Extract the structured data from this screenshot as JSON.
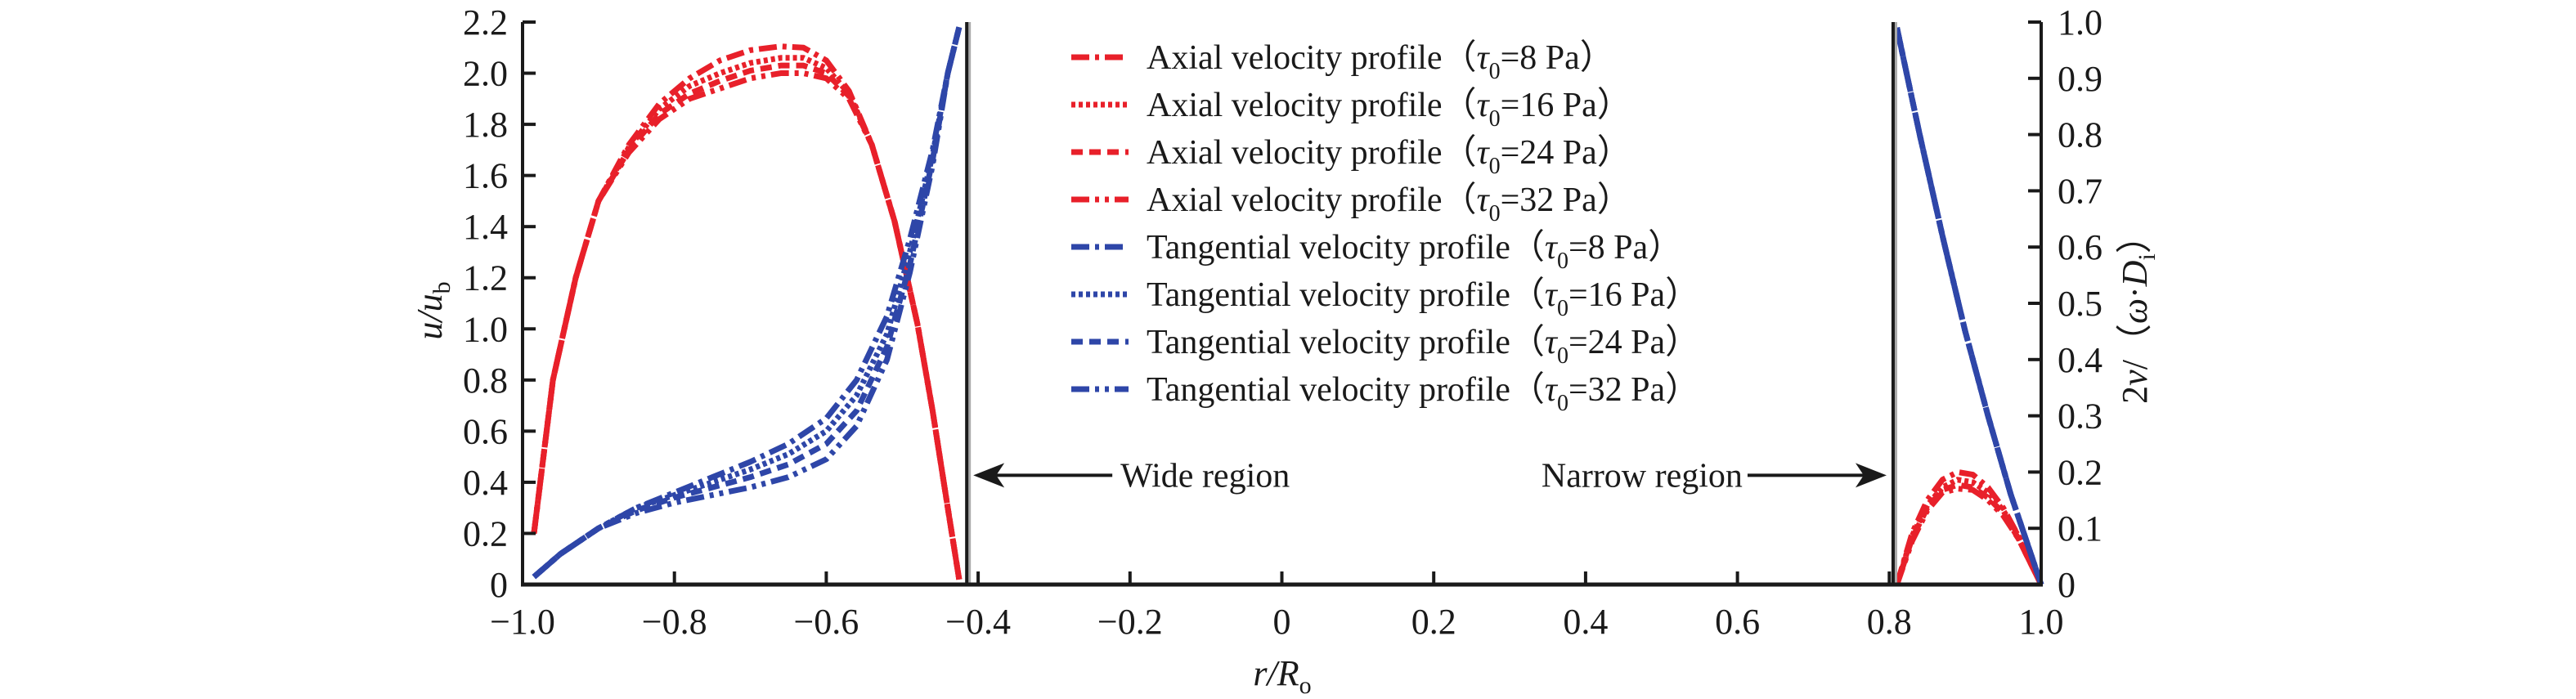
{
  "chart_data": {
    "type": "line",
    "title": "",
    "xlabel": "r/R_o",
    "xlabel_parts": {
      "main_italic": "r/R",
      "sub": "o"
    },
    "ylabel_left": "u/u_b",
    "ylabel_left_parts": {
      "main_italic": "u/u",
      "sub": "b"
    },
    "ylabel_right": "2v/(ω·D_i)",
    "ylabel_right_parts": {
      "pre": "2",
      "v_italic": "v",
      "mid": "/（",
      "omega_italic": "ω",
      "dot": "·",
      "D_italic": "D",
      "sub": "i",
      "post": "）"
    },
    "xlim": [
      -1.0,
      1.0
    ],
    "ylim_left": [
      0,
      2.2
    ],
    "ylim_right": [
      0,
      1.0
    ],
    "grid": false,
    "legend_placement": "top-center",
    "x_ticks": [
      "−1.0",
      "−0.8",
      "−0.6",
      "−0.4",
      "−0.2",
      "0",
      "0.2",
      "0.4",
      "0.6",
      "0.8",
      "1.0"
    ],
    "x_tick_values": [
      -1.0,
      -0.8,
      -0.6,
      -0.4,
      -0.2,
      0,
      0.2,
      0.4,
      0.6,
      0.8,
      1.0
    ],
    "y_left_ticks": [
      "0",
      "0.2",
      "0.4",
      "0.6",
      "0.8",
      "1.0",
      "1.2",
      "1.4",
      "1.6",
      "1.8",
      "2.0",
      "2.2"
    ],
    "y_left_tick_values": [
      0,
      0.2,
      0.4,
      0.6,
      0.8,
      1.0,
      1.2,
      1.4,
      1.6,
      1.8,
      2.0,
      2.2
    ],
    "y_right_ticks": [
      "0",
      "0.1",
      "0.2",
      "0.3",
      "0.4",
      "0.5",
      "0.6",
      "0.7",
      "0.8",
      "0.9",
      "1.0"
    ],
    "y_right_tick_values": [
      0,
      0.1,
      0.2,
      0.3,
      0.4,
      0.5,
      0.6,
      0.7,
      0.8,
      0.9,
      1.0
    ],
    "boundaries": [
      {
        "name": "wide-region-wall",
        "x": -0.415
      },
      {
        "name": "narrow-region-wall",
        "x": 0.805
      }
    ],
    "annotations": [
      {
        "name": "wide-region",
        "text": "Wide region",
        "arrow_to": "left",
        "y": 0.44
      },
      {
        "name": "narrow-region",
        "text": "Narrow region",
        "arrow_to": "right",
        "y": 0.44
      }
    ],
    "colors": {
      "axial": "#e8202a",
      "tangential": "#2e46a8",
      "axis": "#1a1a1a"
    },
    "series": [
      {
        "name": "Axial velocity profile（τ0=8 Pa）",
        "legend_main": "Axial velocity profile（",
        "legend_tau": "τ",
        "legend_sub": "0",
        "legend_tail": "=8 Pa）",
        "axis": "left",
        "color": "axial",
        "dash": "dashdot",
        "wide": {
          "x": [
            -0.985,
            -0.96,
            -0.93,
            -0.9,
            -0.86,
            -0.82,
            -0.78,
            -0.74,
            -0.7,
            -0.66,
            -0.63,
            -0.6,
            -0.57,
            -0.54,
            -0.51,
            -0.48,
            -0.46,
            -0.44,
            -0.425
          ],
          "y": [
            0.2,
            0.8,
            1.2,
            1.5,
            1.72,
            1.88,
            1.98,
            2.05,
            2.09,
            2.105,
            2.1,
            2.05,
            1.93,
            1.72,
            1.42,
            1.02,
            0.68,
            0.3,
            0.02
          ]
        },
        "narrow": {
          "x": [
            0.81,
            0.83,
            0.85,
            0.87,
            0.89,
            0.91,
            0.93,
            0.95,
            0.97,
            0.99,
            1.0
          ],
          "y": [
            0.0,
            0.2,
            0.33,
            0.41,
            0.44,
            0.43,
            0.38,
            0.3,
            0.19,
            0.06,
            0.0
          ]
        }
      },
      {
        "name": "Axial velocity profile（τ0=16 Pa）",
        "legend_main": "Axial velocity profile（",
        "legend_tau": "τ",
        "legend_sub": "0",
        "legend_tail": "=16 Pa）",
        "axis": "left",
        "color": "axial",
        "dash": "dotted",
        "wide": {
          "x": [
            -0.985,
            -0.96,
            -0.93,
            -0.9,
            -0.86,
            -0.82,
            -0.78,
            -0.74,
            -0.7,
            -0.66,
            -0.63,
            -0.6,
            -0.57,
            -0.54,
            -0.51,
            -0.48,
            -0.46,
            -0.44,
            -0.425
          ],
          "y": [
            0.2,
            0.8,
            1.2,
            1.5,
            1.71,
            1.86,
            1.95,
            2.0,
            2.04,
            2.06,
            2.06,
            2.02,
            1.92,
            1.72,
            1.42,
            1.02,
            0.68,
            0.3,
            0.02
          ]
        },
        "narrow": {
          "x": [
            0.81,
            0.83,
            0.85,
            0.87,
            0.89,
            0.91,
            0.93,
            0.95,
            0.97,
            0.99,
            1.0
          ],
          "y": [
            0.0,
            0.19,
            0.31,
            0.38,
            0.41,
            0.4,
            0.36,
            0.29,
            0.19,
            0.06,
            0.0
          ]
        }
      },
      {
        "name": "Axial velocity profile（τ0=24 Pa）",
        "legend_main": "Axial velocity profile（",
        "legend_tau": "τ",
        "legend_sub": "0",
        "legend_tail": "=24 Pa）",
        "axis": "left",
        "color": "axial",
        "dash": "dashed",
        "wide": {
          "x": [
            -0.985,
            -0.96,
            -0.93,
            -0.9,
            -0.86,
            -0.82,
            -0.78,
            -0.74,
            -0.7,
            -0.66,
            -0.63,
            -0.6,
            -0.57,
            -0.54,
            -0.51,
            -0.48,
            -0.46,
            -0.44,
            -0.425
          ],
          "y": [
            0.2,
            0.8,
            1.2,
            1.5,
            1.7,
            1.84,
            1.92,
            1.97,
            2.01,
            2.03,
            2.03,
            2.0,
            1.91,
            1.72,
            1.42,
            1.02,
            0.68,
            0.3,
            0.02
          ]
        },
        "narrow": {
          "x": [
            0.81,
            0.83,
            0.85,
            0.87,
            0.89,
            0.91,
            0.93,
            0.95,
            0.97,
            0.99,
            1.0
          ],
          "y": [
            0.0,
            0.18,
            0.3,
            0.37,
            0.39,
            0.38,
            0.34,
            0.28,
            0.18,
            0.06,
            0.0
          ]
        }
      },
      {
        "name": "Axial velocity profile（τ0=32 Pa）",
        "legend_main": "Axial velocity profile（",
        "legend_tau": "τ",
        "legend_sub": "0",
        "legend_tail": "=32 Pa）",
        "axis": "left",
        "color": "axial",
        "dash": "dashdotdot",
        "wide": {
          "x": [
            -0.985,
            -0.96,
            -0.93,
            -0.9,
            -0.86,
            -0.82,
            -0.78,
            -0.74,
            -0.7,
            -0.66,
            -0.63,
            -0.6,
            -0.57,
            -0.54,
            -0.51,
            -0.48,
            -0.46,
            -0.44,
            -0.425
          ],
          "y": [
            0.2,
            0.8,
            1.2,
            1.5,
            1.69,
            1.82,
            1.9,
            1.94,
            1.98,
            2.0,
            2.0,
            1.98,
            1.9,
            1.72,
            1.42,
            1.02,
            0.68,
            0.3,
            0.02
          ]
        },
        "narrow": {
          "x": [
            0.81,
            0.83,
            0.85,
            0.87,
            0.89,
            0.91,
            0.93,
            0.95,
            0.97,
            0.99,
            1.0
          ],
          "y": [
            0.0,
            0.17,
            0.29,
            0.36,
            0.375,
            0.37,
            0.33,
            0.27,
            0.18,
            0.06,
            0.0
          ]
        }
      },
      {
        "name": "Tangential velocity profile（τ0=8 Pa）",
        "legend_main": "Tangential velocity profile（",
        "legend_tau": "τ",
        "legend_sub": "0",
        "legend_tail": "=8 Pa）",
        "axis": "left",
        "color": "tangential",
        "dash": "dashdot",
        "wide": {
          "x": [
            -0.985,
            -0.95,
            -0.9,
            -0.85,
            -0.8,
            -0.75,
            -0.7,
            -0.65,
            -0.6,
            -0.56,
            -0.52,
            -0.49,
            -0.46,
            -0.44,
            -0.425
          ],
          "y": [
            0.03,
            0.12,
            0.22,
            0.3,
            0.36,
            0.42,
            0.48,
            0.55,
            0.65,
            0.8,
            1.05,
            1.35,
            1.7,
            2.0,
            2.18
          ]
        },
        "narrow": {
          "x": [
            0.81,
            0.84,
            0.87,
            0.9,
            0.93,
            0.96,
            0.98,
            1.0
          ],
          "y": [
            0.99,
            0.8,
            0.62,
            0.45,
            0.3,
            0.16,
            0.08,
            0.0
          ]
        }
      },
      {
        "name": "Tangential velocity profile（τ0=16 Pa）",
        "legend_main": "Tangential velocity profile（",
        "legend_tau": "τ",
        "legend_sub": "0",
        "legend_tail": "=16 Pa）",
        "axis": "left",
        "color": "tangential",
        "dash": "dotted",
        "wide": {
          "x": [
            -0.985,
            -0.95,
            -0.9,
            -0.85,
            -0.8,
            -0.75,
            -0.7,
            -0.65,
            -0.6,
            -0.56,
            -0.52,
            -0.49,
            -0.46,
            -0.44,
            -0.425
          ],
          "y": [
            0.03,
            0.12,
            0.22,
            0.3,
            0.35,
            0.4,
            0.45,
            0.51,
            0.6,
            0.74,
            0.98,
            1.3,
            1.68,
            2.0,
            2.18
          ]
        },
        "narrow": {
          "x": [
            0.81,
            0.84,
            0.87,
            0.9,
            0.93,
            0.96,
            0.98,
            1.0
          ],
          "y": [
            0.99,
            0.8,
            0.62,
            0.45,
            0.3,
            0.16,
            0.08,
            0.0
          ]
        }
      },
      {
        "name": "Tangential velocity profile（τ0=24 Pa）",
        "legend_main": "Tangential velocity profile（",
        "legend_tau": "τ",
        "legend_sub": "0",
        "legend_tail": "=24 Pa）",
        "axis": "left",
        "color": "tangential",
        "dash": "dashed",
        "wide": {
          "x": [
            -0.985,
            -0.95,
            -0.9,
            -0.85,
            -0.8,
            -0.75,
            -0.7,
            -0.65,
            -0.6,
            -0.56,
            -0.52,
            -0.49,
            -0.46,
            -0.44,
            -0.425
          ],
          "y": [
            0.03,
            0.12,
            0.22,
            0.29,
            0.34,
            0.38,
            0.42,
            0.47,
            0.55,
            0.68,
            0.93,
            1.25,
            1.66,
            2.0,
            2.18
          ]
        },
        "narrow": {
          "x": [
            0.81,
            0.84,
            0.87,
            0.9,
            0.93,
            0.96,
            0.98,
            1.0
          ],
          "y": [
            0.99,
            0.8,
            0.62,
            0.45,
            0.3,
            0.16,
            0.08,
            0.0
          ]
        }
      },
      {
        "name": "Tangential velocity profile（τ0=32 Pa）",
        "legend_main": "Tangential velocity profile（",
        "legend_tau": "τ",
        "legend_sub": "0",
        "legend_tail": "=32 Pa）",
        "axis": "left",
        "color": "tangential",
        "dash": "dashdotdot",
        "wide": {
          "x": [
            -0.985,
            -0.95,
            -0.9,
            -0.85,
            -0.8,
            -0.75,
            -0.7,
            -0.65,
            -0.6,
            -0.56,
            -0.52,
            -0.49,
            -0.46,
            -0.44,
            -0.425
          ],
          "y": [
            0.03,
            0.12,
            0.22,
            0.28,
            0.32,
            0.35,
            0.38,
            0.42,
            0.49,
            0.62,
            0.88,
            1.22,
            1.64,
            2.0,
            2.18
          ]
        },
        "narrow": {
          "x": [
            0.81,
            0.84,
            0.87,
            0.9,
            0.93,
            0.96,
            0.98,
            1.0
          ],
          "y": [
            0.99,
            0.8,
            0.62,
            0.45,
            0.3,
            0.16,
            0.08,
            0.0
          ]
        }
      }
    ],
    "notes": "Tangential velocity in the narrow region is plotted against the right axis 2v/(ω·D_i); values listed in right-axis units."
  }
}
